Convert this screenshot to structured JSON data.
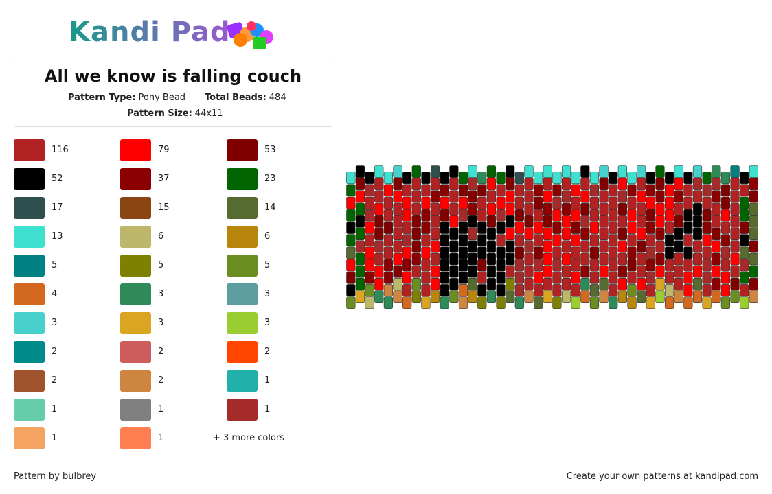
{
  "logo": "Kandi Pad",
  "title": "All we know is falling couch",
  "info": [
    {
      "label": "Pattern Type:",
      "value": "Pony Bead"
    },
    {
      "label": "Total Beads:",
      "value": 484
    },
    {
      "label": "Pattern Size:",
      "value": "44x11"
    }
  ],
  "legend": [
    {
      "color": "#b22222",
      "count": 116
    },
    {
      "color": "#ff0000",
      "count": 79
    },
    {
      "color": "#800000",
      "count": 53
    },
    {
      "color": "#000000",
      "count": 52
    },
    {
      "color": "#8b0000",
      "count": 37
    },
    {
      "color": "#006400",
      "count": 23
    },
    {
      "color": "#2f4f4f",
      "count": 17
    },
    {
      "color": "#8b4513",
      "count": 15
    },
    {
      "color": "#556b2f",
      "count": 14
    },
    {
      "color": "#40e0d0",
      "count": 13
    },
    {
      "color": "#bdb76b",
      "count": 6
    },
    {
      "color": "#b8860b",
      "count": 6
    },
    {
      "color": "#008080",
      "count": 5
    },
    {
      "color": "#808000",
      "count": 5
    },
    {
      "color": "#6b8e23",
      "count": 5
    },
    {
      "color": "#d2691e",
      "count": 4
    },
    {
      "color": "#2e8b57",
      "count": 3
    },
    {
      "color": "#5f9ea0",
      "count": 3
    },
    {
      "color": "#48d1cc",
      "count": 3
    },
    {
      "color": "#daa520",
      "count": 3
    },
    {
      "color": "#9acd32",
      "count": 3
    },
    {
      "color": "#008b8b",
      "count": 2
    },
    {
      "color": "#cd5c5c",
      "count": 2
    },
    {
      "color": "#ff4500",
      "count": 2
    },
    {
      "color": "#a0522d",
      "count": 2
    },
    {
      "color": "#cd853f",
      "count": 2
    },
    {
      "color": "#20b2aa",
      "count": 1
    },
    {
      "color": "#66cdaa",
      "count": 1
    },
    {
      "color": "#808080",
      "count": 1
    },
    {
      "color": "#a52a2a",
      "count": 1
    },
    {
      "color": "#f4a460",
      "count": 1
    },
    {
      "color": "#ff7f50",
      "count": 1
    }
  ],
  "more_colors": "+ 3 more colors",
  "footer": {
    "left": "Pattern by bulbrey",
    "right": "Create your own patterns at kandipad.com"
  }
}
